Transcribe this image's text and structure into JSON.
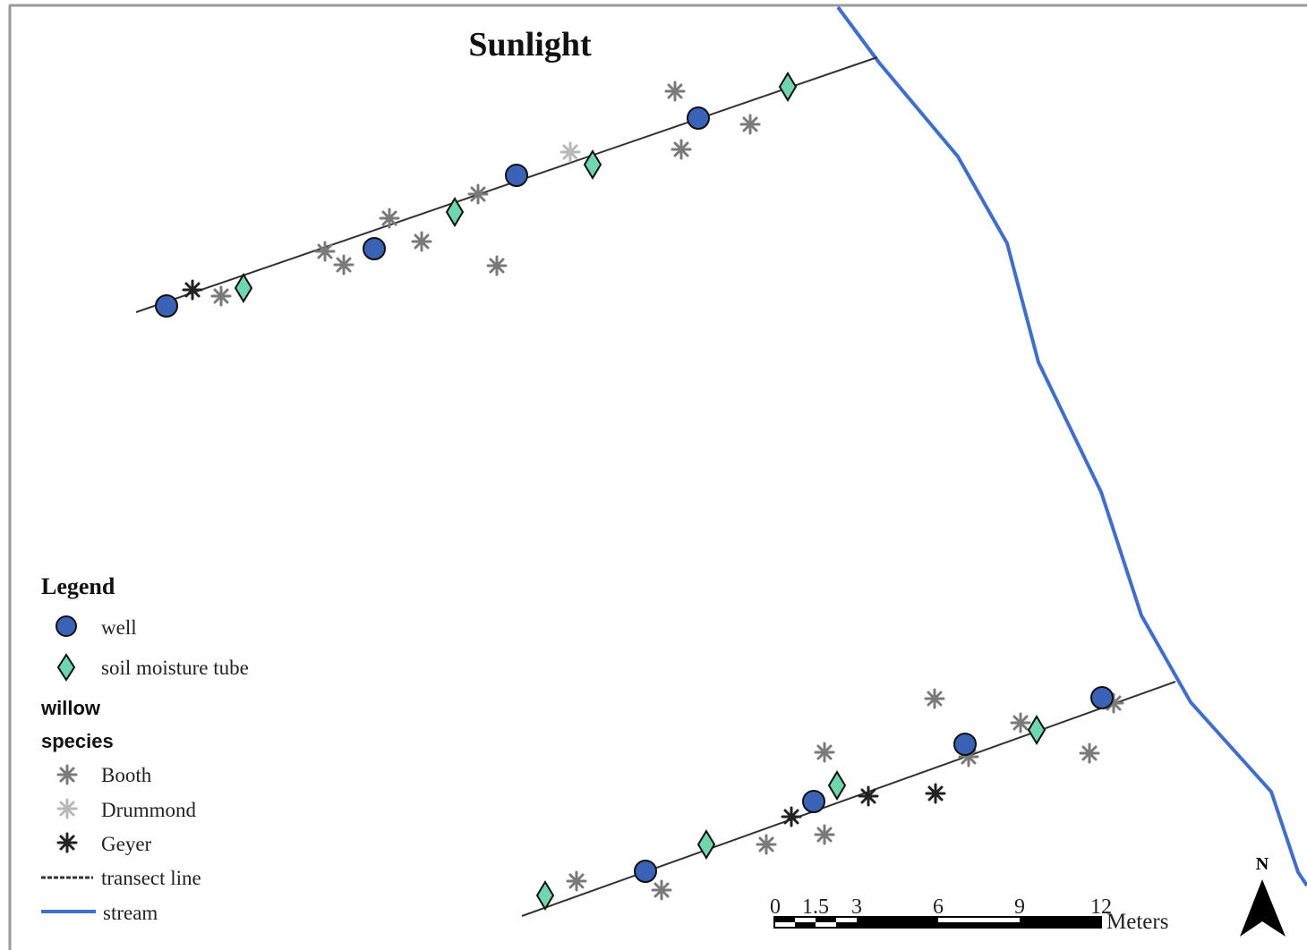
{
  "title": "Sunlight",
  "legend": {
    "heading": "Legend",
    "items": [
      {
        "label": "well",
        "symbol": "well"
      },
      {
        "label": "soil moisture tube",
        "symbol": "tube"
      }
    ],
    "group_heading_line1": "willow",
    "group_heading_line2": "species",
    "species": [
      {
        "label": "Booth",
        "symbol": "booth"
      },
      {
        "label": "Drummond",
        "symbol": "drummond"
      },
      {
        "label": "Geyer",
        "symbol": "geyer"
      }
    ],
    "lines": [
      {
        "label": "transect line",
        "symbol": "transect"
      },
      {
        "label": "stream",
        "symbol": "stream"
      }
    ]
  },
  "scale_bar": {
    "ticks": [
      "0",
      "1.5",
      "3",
      "6",
      "9",
      "12"
    ],
    "unit": "Meters"
  },
  "north_arrow": {
    "label": "N"
  },
  "colors": {
    "well": "#3a63b8",
    "tube": "#6fd6b0",
    "booth": "#7a7a7a",
    "drummond": "#b8b8b8",
    "geyer": "#222222",
    "stream": "#3f6fc8",
    "transect": "#333333",
    "frame": "#9a9a9a"
  }
}
